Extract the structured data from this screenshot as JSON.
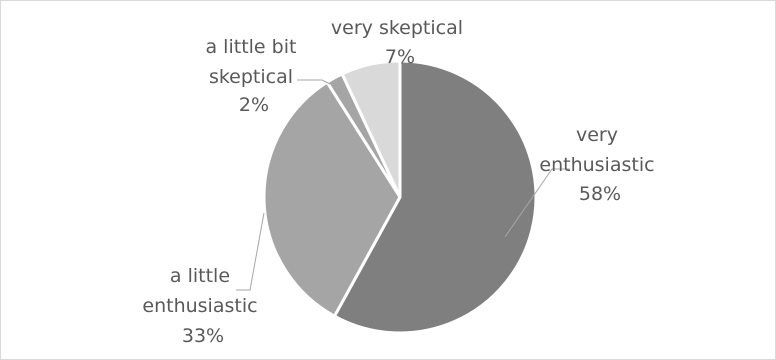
{
  "chart_data": {
    "type": "pie",
    "slices": [
      {
        "name": "very enthusiastic",
        "label_lines": [
          "very",
          "enthusiastic",
          "58%"
        ],
        "value": 58,
        "color": "#7f7f7f"
      },
      {
        "name": "a little enthusiastic",
        "label_lines": [
          "a little",
          "enthusiastic",
          "33%"
        ],
        "value": 33,
        "color": "#a5a5a5"
      },
      {
        "name": "a little bit skeptical",
        "label_lines": [
          "a little bit",
          "skeptical",
          "2%"
        ],
        "value": 2,
        "color": "#a5a5a5"
      },
      {
        "name": "very skeptical",
        "label_lines": [
          "very skeptical",
          "7%"
        ],
        "value": 7,
        "color": "#d9d9d9"
      }
    ],
    "start_angle_deg": 0,
    "direction": "clockwise",
    "show_legend": false,
    "leader_lines": true
  }
}
